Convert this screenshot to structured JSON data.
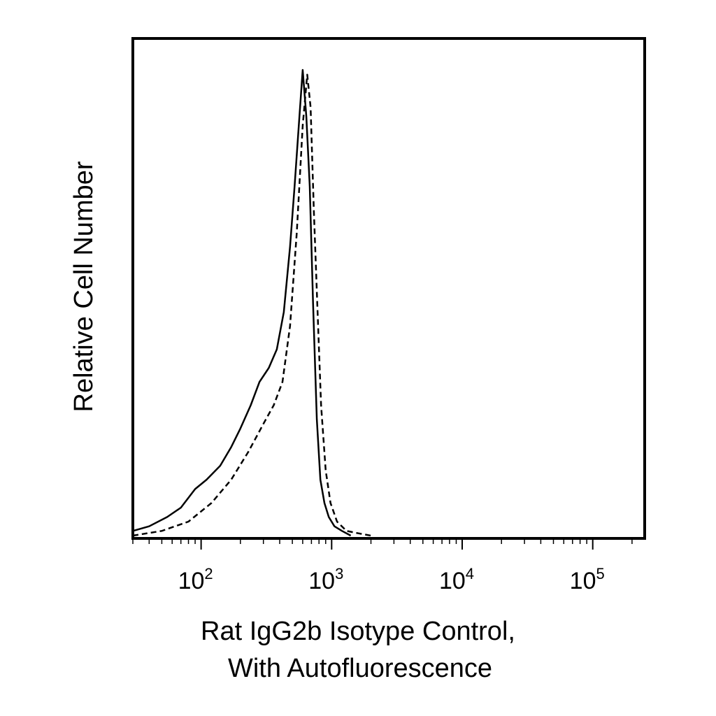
{
  "chart_data": {
    "type": "line",
    "title": "",
    "xlabel_lines": [
      "Rat IgG2b Isotype Control,",
      "With Autofluorescence"
    ],
    "ylabel": "Relative Cell Number",
    "xscale": "log",
    "xlim": [
      30,
      250000
    ],
    "ylim": [
      0,
      100
    ],
    "x_tick_labels": [
      {
        "value": 100,
        "base": "10",
        "exp": "2"
      },
      {
        "value": 1000,
        "base": "10",
        "exp": "3"
      },
      {
        "value": 10000,
        "base": "10",
        "exp": "4"
      },
      {
        "value": 100000,
        "base": "10",
        "exp": "5"
      }
    ],
    "grid": false,
    "legend": "none",
    "series": [
      {
        "style": "solid",
        "color": "#000000",
        "x": [
          30,
          40,
          55,
          70,
          90,
          110,
          140,
          170,
          200,
          240,
          280,
          330,
          380,
          430,
          480,
          520,
          560,
          600,
          640,
          680,
          720,
          770,
          820,
          880,
          950,
          1050,
          1200,
          1400
        ],
        "y": [
          1,
          2,
          4,
          6,
          10,
          12,
          15,
          19,
          23,
          28,
          33,
          36,
          40,
          48,
          62,
          75,
          88,
          100,
          90,
          75,
          50,
          25,
          12,
          7,
          4,
          2,
          1,
          0
        ]
      },
      {
        "style": "dashed",
        "color": "#000000",
        "x": [
          30,
          50,
          80,
          120,
          170,
          230,
          300,
          360,
          420,
          480,
          540,
          600,
          650,
          690,
          730,
          780,
          830,
          900,
          980,
          1100,
          1300,
          1600,
          2000
        ],
        "y": [
          0,
          1,
          3,
          7,
          12,
          18,
          24,
          28,
          33,
          45,
          65,
          88,
          99,
          92,
          70,
          48,
          28,
          14,
          7,
          3,
          1,
          0.5,
          0
        ]
      }
    ]
  }
}
